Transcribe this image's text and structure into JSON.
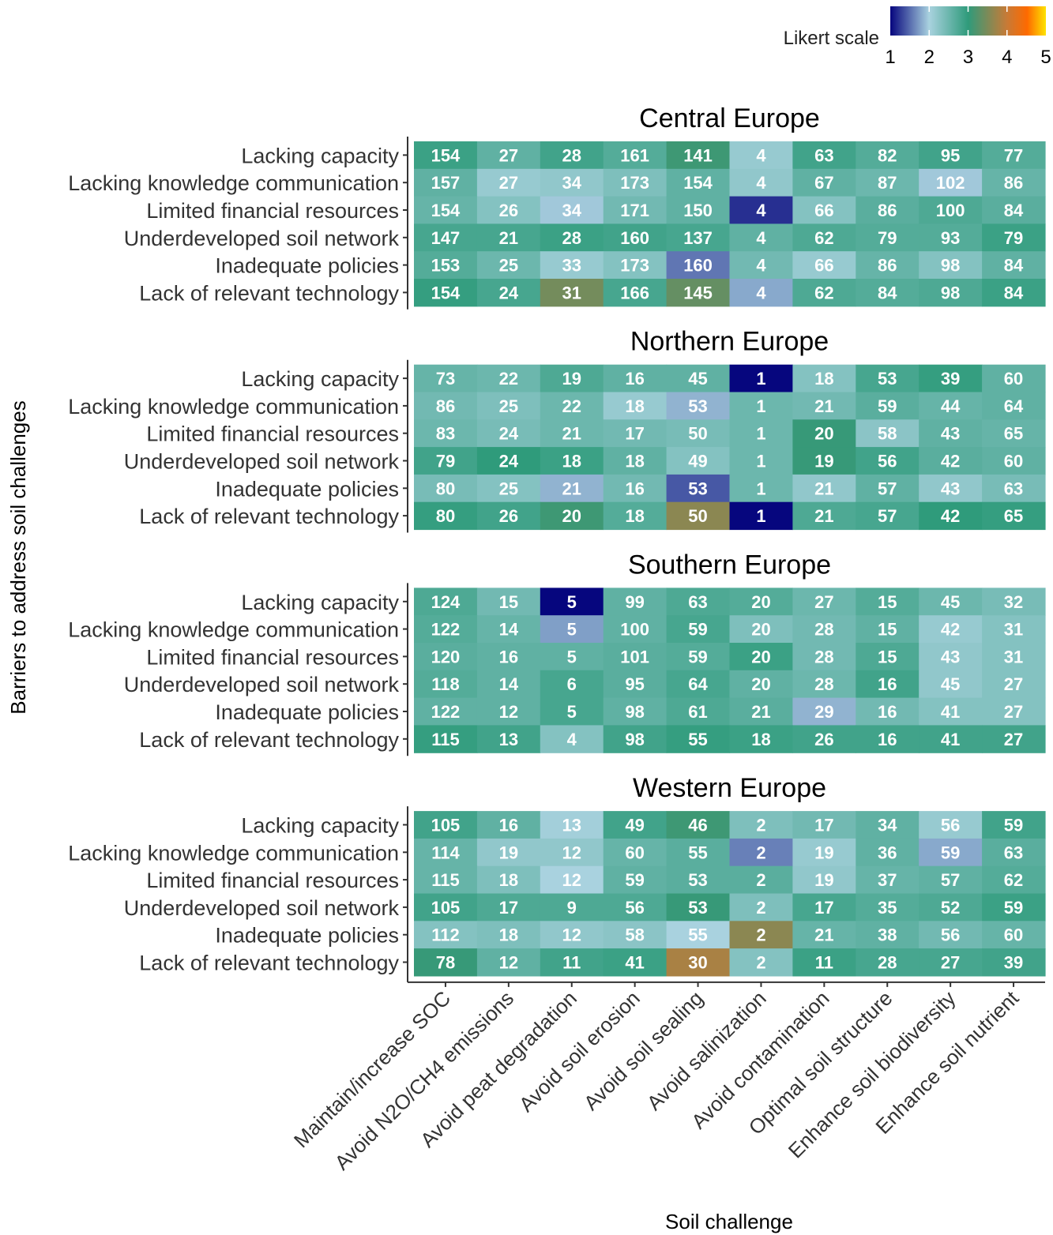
{
  "chart_data": {
    "type": "heatmap",
    "xlabel": "Soil challenge",
    "ylabel": "Barriers to address soil challenges",
    "legend": {
      "title": "Likert scale",
      "ticks": [
        "1",
        "2",
        "3",
        "4",
        "5"
      ],
      "range": [
        1,
        5
      ],
      "placement": "top-right",
      "colors": [
        "#06067e",
        "#a9d2df",
        "#2f9b7b",
        "#c87a36",
        "#fe6a00",
        "#fee300"
      ]
    },
    "columns": [
      "Maintain/increase SOC",
      "Avoid N2O/CH4 emissions",
      "Avoid peat degradation",
      "Avoid soil erosion",
      "Avoid soil sealing",
      "Avoid salinization",
      "Avoid contamination",
      "Optimal soil structure",
      "Enhance soil biodiversity",
      "Enhance soil nutrient"
    ],
    "rows": [
      "Lacking capacity",
      "Lacking knowledge communication",
      "Limited financial resources",
      "Underdeveloped soil network",
      "Inadequate policies",
      "Lack of relevant technology"
    ],
    "panels": [
      {
        "title": "Central Europe",
        "counts": [
          [
            "154",
            "27",
            "28",
            "161",
            "141",
            "4",
            "63",
            "82",
            "95",
            "77"
          ],
          [
            "157",
            "27",
            "34",
            "173",
            "154",
            "4",
            "67",
            "87",
            "102",
            "86"
          ],
          [
            "154",
            "26",
            "34",
            "171",
            "150",
            "4",
            "66",
            "86",
            "100",
            "84"
          ],
          [
            "147",
            "21",
            "28",
            "160",
            "137",
            "4",
            "62",
            "79",
            "93",
            "79"
          ],
          [
            "153",
            "25",
            "33",
            "173",
            "160",
            "4",
            "66",
            "86",
            "98",
            "84"
          ],
          [
            "154",
            "24",
            "31",
            "166",
            "145",
            "4",
            "62",
            "84",
            "98",
            "84"
          ]
        ],
        "likert": [
          [
            2.9,
            2.6,
            2.85,
            2.7,
            3.1,
            2.15,
            2.85,
            2.7,
            2.85,
            2.7
          ],
          [
            2.6,
            2.15,
            2.2,
            2.35,
            2.6,
            2.2,
            2.6,
            2.5,
            1.95,
            2.55
          ],
          [
            2.55,
            2.3,
            1.95,
            2.45,
            2.6,
            1.2,
            2.3,
            2.65,
            2.75,
            2.65
          ],
          [
            2.8,
            2.8,
            2.9,
            2.85,
            2.8,
            2.6,
            2.75,
            2.7,
            2.7,
            2.9
          ],
          [
            2.7,
            2.5,
            2.15,
            2.3,
            1.55,
            2.45,
            2.15,
            2.55,
            2.3,
            2.6
          ],
          [
            2.95,
            2.8,
            3.45,
            2.8,
            3.35,
            1.8,
            2.75,
            2.7,
            2.75,
            2.9
          ]
        ]
      },
      {
        "title": "Northern Europe",
        "counts": [
          [
            "73",
            "22",
            "19",
            "16",
            "45",
            "1",
            "18",
            "53",
            "39",
            "60"
          ],
          [
            "86",
            "25",
            "22",
            "18",
            "53",
            "1",
            "21",
            "59",
            "44",
            "64"
          ],
          [
            "83",
            "24",
            "21",
            "17",
            "50",
            "1",
            "20",
            "58",
            "43",
            "65"
          ],
          [
            "79",
            "24",
            "18",
            "18",
            "49",
            "1",
            "19",
            "56",
            "42",
            "60"
          ],
          [
            "80",
            "25",
            "21",
            "16",
            "53",
            "1",
            "21",
            "57",
            "43",
            "63"
          ],
          [
            "80",
            "26",
            "20",
            "18",
            "50",
            "1",
            "21",
            "57",
            "42",
            "65"
          ]
        ],
        "likert": [
          [
            2.55,
            2.5,
            2.75,
            2.6,
            2.6,
            1.0,
            2.3,
            2.8,
            2.95,
            2.6
          ],
          [
            2.45,
            2.35,
            2.5,
            2.15,
            1.85,
            2.5,
            2.45,
            2.65,
            2.55,
            2.6
          ],
          [
            2.5,
            2.4,
            2.5,
            2.45,
            2.4,
            2.5,
            3.05,
            2.25,
            2.6,
            2.55
          ],
          [
            2.85,
            3.0,
            2.9,
            2.6,
            2.3,
            2.5,
            3.05,
            2.85,
            2.65,
            2.6
          ],
          [
            2.4,
            2.3,
            1.85,
            2.45,
            1.4,
            2.5,
            2.2,
            2.6,
            2.2,
            2.4
          ],
          [
            2.95,
            2.85,
            3.1,
            2.7,
            3.6,
            1.0,
            2.75,
            2.8,
            3.0,
            2.95
          ]
        ]
      },
      {
        "title": "Southern Europe",
        "counts": [
          [
            "124",
            "15",
            "5",
            "99",
            "63",
            "20",
            "27",
            "15",
            "45",
            "32"
          ],
          [
            "122",
            "14",
            "5",
            "100",
            "59",
            "20",
            "28",
            "15",
            "42",
            "31"
          ],
          [
            "120",
            "16",
            "5",
            "101",
            "59",
            "20",
            "28",
            "15",
            "43",
            "31"
          ],
          [
            "118",
            "14",
            "6",
            "95",
            "64",
            "20",
            "28",
            "16",
            "45",
            "27"
          ],
          [
            "122",
            "12",
            "5",
            "98",
            "61",
            "21",
            "29",
            "16",
            "41",
            "27"
          ],
          [
            "115",
            "13",
            "4",
            "98",
            "55",
            "18",
            "26",
            "16",
            "41",
            "27"
          ]
        ],
        "likert": [
          [
            2.75,
            2.45,
            1.0,
            2.6,
            2.75,
            2.7,
            2.5,
            2.7,
            2.5,
            2.4
          ],
          [
            2.7,
            2.55,
            1.75,
            2.6,
            2.8,
            2.35,
            2.45,
            2.6,
            2.15,
            2.3
          ],
          [
            2.65,
            2.6,
            2.6,
            2.65,
            2.7,
            2.9,
            2.45,
            2.75,
            2.2,
            2.3
          ],
          [
            2.7,
            2.6,
            2.8,
            2.65,
            2.8,
            2.6,
            2.5,
            2.85,
            2.2,
            2.3
          ],
          [
            2.6,
            2.6,
            2.8,
            2.6,
            2.75,
            2.65,
            1.85,
            2.45,
            2.3,
            2.3
          ],
          [
            2.95,
            2.85,
            2.3,
            2.85,
            2.95,
            2.9,
            2.85,
            2.85,
            2.85,
            2.85
          ]
        ]
      },
      {
        "title": "Western Europe",
        "counts": [
          [
            "105",
            "16",
            "13",
            "49",
            "46",
            "2",
            "17",
            "34",
            "56",
            "59"
          ],
          [
            "114",
            "19",
            "12",
            "60",
            "55",
            "2",
            "19",
            "36",
            "59",
            "63"
          ],
          [
            "115",
            "18",
            "12",
            "59",
            "53",
            "2",
            "19",
            "37",
            "57",
            "62"
          ],
          [
            "105",
            "17",
            "9",
            "56",
            "53",
            "2",
            "17",
            "35",
            "52",
            "59"
          ],
          [
            "112",
            "18",
            "12",
            "58",
            "55",
            "2",
            "21",
            "38",
            "56",
            "60"
          ],
          [
            "78",
            "12",
            "11",
            "41",
            "30",
            "2",
            "11",
            "28",
            "27",
            "39"
          ]
        ],
        "likert": [
          [
            2.85,
            2.6,
            2.05,
            2.85,
            3.1,
            2.35,
            2.45,
            2.6,
            2.15,
            2.85
          ],
          [
            2.55,
            2.2,
            2.2,
            2.55,
            2.65,
            1.6,
            2.15,
            2.6,
            1.8,
            2.65
          ],
          [
            2.55,
            2.35,
            2.0,
            2.6,
            2.65,
            2.65,
            2.2,
            2.55,
            2.6,
            2.7
          ],
          [
            2.85,
            2.75,
            2.75,
            2.75,
            3.05,
            2.35,
            2.8,
            2.7,
            2.75,
            2.9
          ],
          [
            2.3,
            2.35,
            2.2,
            2.25,
            2.0,
            3.6,
            2.55,
            2.6,
            2.45,
            2.55
          ],
          [
            3.05,
            2.6,
            2.85,
            2.9,
            3.8,
            2.3,
            2.9,
            2.8,
            2.8,
            2.85
          ]
        ]
      }
    ]
  }
}
